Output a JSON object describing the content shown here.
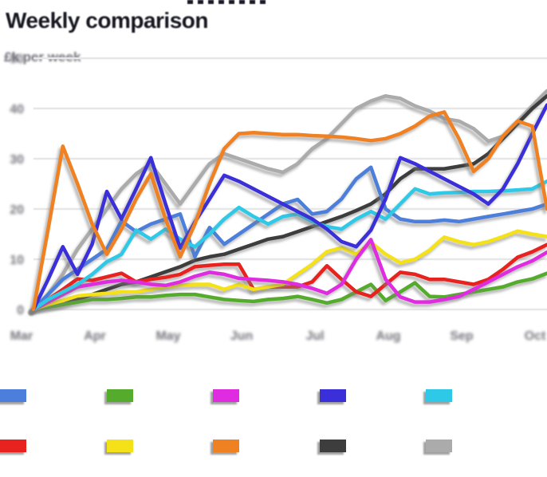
{
  "header": {
    "title": "Weekly comparison",
    "title_color": "#16161f",
    "subtitle": "£k per week",
    "subtitle_color": "#6e6e78"
  },
  "axes": {
    "y_tick_labels": [
      "0",
      "10",
      "20",
      "30",
      "40",
      "50"
    ],
    "x_tick_labels": [
      "Mar",
      "Apr",
      "May",
      "Jun",
      "Jul",
      "Aug",
      "Sep",
      "Oct"
    ],
    "tick_label_color": "#73737b",
    "grid_color": "#e7e7e7"
  },
  "chart_data": {
    "type": "line",
    "title": "Weekly comparison",
    "subtitle": "£k per week",
    "xlabel": "",
    "ylabel": "£k per week",
    "x_tick_labels": [
      "Mar",
      "Apr",
      "May",
      "Jun",
      "Jul",
      "Aug",
      "Sep",
      "Oct"
    ],
    "y_ticks": [
      0,
      10,
      20,
      30,
      40,
      50
    ],
    "ylim": [
      0,
      52
    ],
    "x_unit": "week",
    "n_points": 36,
    "grid": "horizontal",
    "legend_position": "bottom",
    "line_shadow": true,
    "series": [
      {
        "name": "blue",
        "color": "#4b7fdb",
        "values": [
          0,
          3,
          6,
          8,
          10,
          12,
          17.6,
          15.5,
          17,
          18,
          19,
          10.5,
          16.3,
          13,
          15,
          17,
          19,
          21,
          21.9,
          19,
          19.5,
          22,
          26,
          28.3,
          20,
          18,
          17.5,
          17.5,
          17.8,
          17.5,
          18,
          18.5,
          19,
          19.5,
          20,
          21
        ]
      },
      {
        "name": "green",
        "color": "#55ab2c",
        "values": [
          0,
          0.5,
          1,
          1.5,
          2,
          2,
          2.2,
          2.5,
          2.5,
          2.8,
          3,
          3,
          2.5,
          2,
          1.8,
          1.6,
          2,
          2.2,
          2.6,
          2,
          1.3,
          2,
          3.5,
          5,
          1.8,
          3.5,
          5.3,
          2.6,
          2.5,
          3,
          3.5,
          4,
          4.5,
          5.5,
          6.1,
          7.2
        ]
      },
      {
        "name": "magenta",
        "color": "#df2ce0",
        "values": [
          0,
          1.5,
          3,
          4.5,
          5,
          5.5,
          5.8,
          5.5,
          5,
          4.8,
          5.5,
          6.6,
          7.4,
          7,
          6.2,
          6,
          5.8,
          5.5,
          5,
          4.2,
          3.2,
          5,
          10,
          13.9,
          6,
          2.5,
          1.5,
          1.5,
          2,
          2.6,
          4,
          5.5,
          7,
          8.5,
          9.7,
          11.4
        ]
      },
      {
        "name": "indigo",
        "color": "#3a2fd9",
        "values": [
          0,
          6,
          12.5,
          7,
          13,
          23.5,
          18,
          24,
          30.2,
          21,
          12.2,
          17.4,
          22,
          26.7,
          25.5,
          24,
          22.5,
          21,
          19.5,
          18,
          16,
          13.5,
          12.5,
          15.8,
          22,
          30.2,
          29,
          27.5,
          26,
          24.5,
          23,
          21,
          24,
          29,
          35,
          40.7
        ]
      },
      {
        "name": "cyan",
        "color": "#2fc9e8",
        "values": [
          0,
          2,
          3.5,
          5,
          7,
          9.5,
          11,
          15.8,
          14,
          16,
          14,
          12.5,
          15,
          18,
          20.3,
          18.5,
          17,
          18.5,
          19,
          17.5,
          16.5,
          16,
          18,
          19.5,
          18,
          21,
          24,
          23,
          23.2,
          23.3,
          23.5,
          23.5,
          23.6,
          23.8,
          24,
          25.5
        ]
      },
      {
        "name": "red",
        "color": "#e8231f",
        "values": [
          0,
          2,
          4,
          6.1,
          5.8,
          6.5,
          7.2,
          5.5,
          6,
          6.4,
          7,
          8.5,
          8.8,
          9,
          9,
          4,
          4.5,
          4.5,
          4.5,
          5.5,
          8.7,
          6,
          3.5,
          2.6,
          5,
          7.4,
          7,
          6,
          6,
          5.5,
          5,
          6,
          8,
          10.4,
          11.5,
          12.9
        ]
      },
      {
        "name": "yellow",
        "color": "#f4e118",
        "values": [
          0,
          1,
          1.8,
          2.7,
          3,
          3.2,
          3.5,
          3.5,
          4,
          4.5,
          4.8,
          5,
          5,
          4,
          5,
          4,
          4.5,
          5,
          7,
          9,
          11.5,
          12.3,
          11,
          13.4,
          11,
          9.3,
          10,
          11.8,
          14.4,
          13.5,
          12.9,
          13.5,
          14.5,
          15.6,
          15,
          14.5
        ]
      },
      {
        "name": "orange",
        "color": "#f08122",
        "values": [
          0,
          16,
          32.5,
          25,
          17,
          11,
          16,
          22,
          27,
          18,
          10.5,
          17,
          25,
          32,
          35,
          35.2,
          35,
          34.8,
          34.8,
          34.6,
          34.5,
          34.3,
          34,
          33.6,
          34,
          35,
          36.5,
          38.5,
          39.3,
          34,
          27.5,
          30,
          34.5,
          37.5,
          36.5,
          20
        ]
      },
      {
        "name": "dark-gray",
        "color": "#3d3d3d",
        "values": [
          0,
          0.5,
          1,
          2,
          3,
          4,
          5,
          5.5,
          6.5,
          7.5,
          8.5,
          9.8,
          10.5,
          11,
          12,
          13,
          14,
          14.5,
          15.5,
          16.5,
          17.5,
          18.5,
          19.7,
          21,
          23,
          26,
          28,
          28,
          28,
          28.5,
          29,
          31,
          34,
          37,
          40,
          42.5
        ]
      },
      {
        "name": "light-gray",
        "color": "#ababab",
        "values": [
          0,
          3,
          7,
          12,
          16,
          20,
          24,
          27,
          29,
          25,
          21,
          25,
          29,
          31,
          30,
          29,
          28,
          27.3,
          29,
          32,
          34,
          37,
          40,
          41.5,
          42.5,
          42,
          40.5,
          39.5,
          38,
          37.5,
          36,
          33.5,
          34.5,
          37.5,
          40.5,
          43.5
        ]
      }
    ],
    "legend": [
      {
        "label": "",
        "color": "#4b7fdb"
      },
      {
        "label": "",
        "color": "#55ab2c"
      },
      {
        "label": "",
        "color": "#df2ce0"
      },
      {
        "label": "",
        "color": "#3a2fd9"
      },
      {
        "label": "",
        "color": "#2fc9e8"
      },
      {
        "label": "",
        "color": "#e8231f"
      },
      {
        "label": "",
        "color": "#f4e118"
      },
      {
        "label": "",
        "color": "#f08122"
      },
      {
        "label": "",
        "color": "#3d3d3d"
      },
      {
        "label": "",
        "color": "#ababab"
      }
    ]
  }
}
